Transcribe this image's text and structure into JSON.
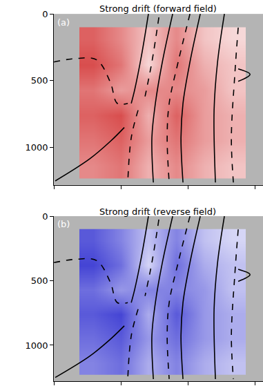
{
  "chart_data": [
    {
      "type": "heatmap",
      "title": "Strong drift (forward field)",
      "annotations": [
        "(a)"
      ],
      "xlim": [
        0,
        1560
      ],
      "ylim": [
        1280,
        0
      ],
      "xticks": [
        0,
        500,
        1000,
        1500
      ],
      "yticks": [
        0,
        500,
        1000
      ],
      "tick_labels": "y",
      "color": "#d43a3a",
      "cells": {
        "x": [
          190,
          397,
          603,
          810,
          1017,
          1223,
          1430
        ],
        "y": [
          100,
          288,
          477,
          665,
          853,
          1042,
          1230
        ],
        "zlim": [
          0,
          1
        ],
        "z": [
          [
            0.8,
            0.6,
            0.3,
            0.6,
            0.3,
            0.2
          ],
          [
            0.9,
            0.7,
            0.2,
            0.7,
            0.4,
            0.3
          ],
          [
            0.7,
            0.5,
            0.6,
            0.6,
            0.5,
            0.3
          ],
          [
            0.8,
            0.9,
            0.4,
            0.8,
            0.5,
            0.4
          ],
          [
            0.7,
            0.8,
            0.5,
            0.7,
            0.5,
            0.4
          ],
          [
            0.6,
            0.7,
            0.4,
            0.6,
            0.4,
            0.3
          ]
        ]
      },
      "series": [
        {
          "color": "#000000",
          "line_style": "solid",
          "x": [
            10,
            268,
            422,
            525
          ],
          "y": [
            1250,
            1084,
            953,
            850
          ]
        },
        {
          "color": "#000000",
          "line_style": "solid",
          "x": [
            705,
            654,
            603,
            577
          ],
          "y": [
            0,
            309,
            566,
            670
          ]
        },
        {
          "color": "#000000",
          "line_style": "solid",
          "x": [
            886,
            809,
            757,
            731,
            742
          ],
          "y": [
            0,
            360,
            670,
            927,
            1262
          ]
        },
        {
          "color": "#000000",
          "line_style": "solid",
          "x": [
            1092,
            1015,
            963,
            948,
            963
          ],
          "y": [
            0,
            360,
            670,
            927,
            1262
          ]
        },
        {
          "color": "#000000",
          "line_style": "solid",
          "x": [
            1272,
            1221,
            1195,
            1205
          ],
          "y": [
            0,
            360,
            721,
            1262
          ]
        },
        {
          "color": "#000000",
          "line_style": "solid",
          "x": [
            1375,
            1463,
            1375
          ],
          "y": [
            412,
            453,
            505
          ]
        },
        {
          "color": "#000000",
          "line_style": "dashed",
          "x": [
            0,
            165,
            319,
            422,
            473,
            551
          ],
          "y": [
            360,
            334,
            344,
            515,
            670,
            670
          ]
        },
        {
          "color": "#000000",
          "line_style": "dashed",
          "x": [
            783,
            731,
            680
          ],
          "y": [
            26,
            360,
            618
          ]
        },
        {
          "color": "#000000",
          "line_style": "dashed",
          "x": [
            1015,
            927,
            860,
            845,
            860
          ],
          "y": [
            0,
            360,
            670,
            927,
            1262
          ]
        },
        {
          "color": "#000000",
          "line_style": "dashed",
          "x": [
            1375,
            1349,
            1324,
            1339
          ],
          "y": [
            103,
            463,
            927,
            1262
          ]
        },
        {
          "color": "#000000",
          "line_style": "dashed",
          "x": [
            628,
            577,
            551
          ],
          "y": [
            721,
            927,
            1262
          ]
        }
      ]
    },
    {
      "type": "heatmap",
      "title": "Strong drift (reverse field)",
      "annotations": [
        "(b)"
      ],
      "xlim": [
        0,
        1560
      ],
      "ylim": [
        1280,
        0
      ],
      "xticks": [
        0,
        500,
        1000,
        1500
      ],
      "yticks": [
        0,
        500,
        1000
      ],
      "tick_labels": "y",
      "color": "#3030d0",
      "cells": {
        "x": [
          190,
          397,
          603,
          810,
          1017,
          1223,
          1430
        ],
        "y": [
          100,
          288,
          477,
          665,
          853,
          1042,
          1230
        ],
        "zlim": [
          0,
          1
        ],
        "z": [
          [
            0.8,
            0.6,
            0.3,
            0.6,
            0.3,
            0.2
          ],
          [
            0.9,
            0.7,
            0.2,
            0.7,
            0.4,
            0.3
          ],
          [
            0.7,
            0.5,
            0.6,
            0.6,
            0.5,
            0.3
          ],
          [
            0.8,
            0.9,
            0.4,
            0.8,
            0.5,
            0.4
          ],
          [
            0.7,
            0.8,
            0.5,
            0.7,
            0.5,
            0.4
          ],
          [
            0.6,
            0.7,
            0.4,
            0.6,
            0.4,
            0.3
          ]
        ]
      },
      "series": [
        {
          "color": "#000000",
          "line_style": "solid",
          "x": [
            10,
            268,
            422,
            525
          ],
          "y": [
            1250,
            1084,
            953,
            850
          ]
        },
        {
          "color": "#000000",
          "line_style": "solid",
          "x": [
            705,
            654,
            603,
            577
          ],
          "y": [
            0,
            309,
            566,
            670
          ]
        },
        {
          "color": "#000000",
          "line_style": "solid",
          "x": [
            886,
            809,
            757,
            731,
            742
          ],
          "y": [
            0,
            360,
            670,
            927,
            1262
          ]
        },
        {
          "color": "#000000",
          "line_style": "solid",
          "x": [
            1092,
            1015,
            963,
            948,
            963
          ],
          "y": [
            0,
            360,
            670,
            927,
            1262
          ]
        },
        {
          "color": "#000000",
          "line_style": "solid",
          "x": [
            1272,
            1221,
            1195,
            1205
          ],
          "y": [
            0,
            360,
            721,
            1262
          ]
        },
        {
          "color": "#000000",
          "line_style": "solid",
          "x": [
            1375,
            1463,
            1375
          ],
          "y": [
            412,
            453,
            505
          ]
        },
        {
          "color": "#000000",
          "line_style": "dashed",
          "x": [
            0,
            165,
            319,
            422,
            473,
            551
          ],
          "y": [
            360,
            334,
            344,
            515,
            670,
            670
          ]
        },
        {
          "color": "#000000",
          "line_style": "dashed",
          "x": [
            783,
            731,
            680
          ],
          "y": [
            26,
            360,
            618
          ]
        },
        {
          "color": "#000000",
          "line_style": "dashed",
          "x": [
            1015,
            927,
            860,
            845,
            860
          ],
          "y": [
            0,
            360,
            670,
            927,
            1262
          ]
        },
        {
          "color": "#000000",
          "line_style": "dashed",
          "x": [
            1375,
            1349,
            1324,
            1339
          ],
          "y": [
            103,
            463,
            927,
            1262
          ]
        },
        {
          "color": "#000000",
          "line_style": "dashed",
          "x": [
            628,
            577,
            551
          ],
          "y": [
            721,
            927,
            1262
          ]
        }
      ]
    }
  ]
}
